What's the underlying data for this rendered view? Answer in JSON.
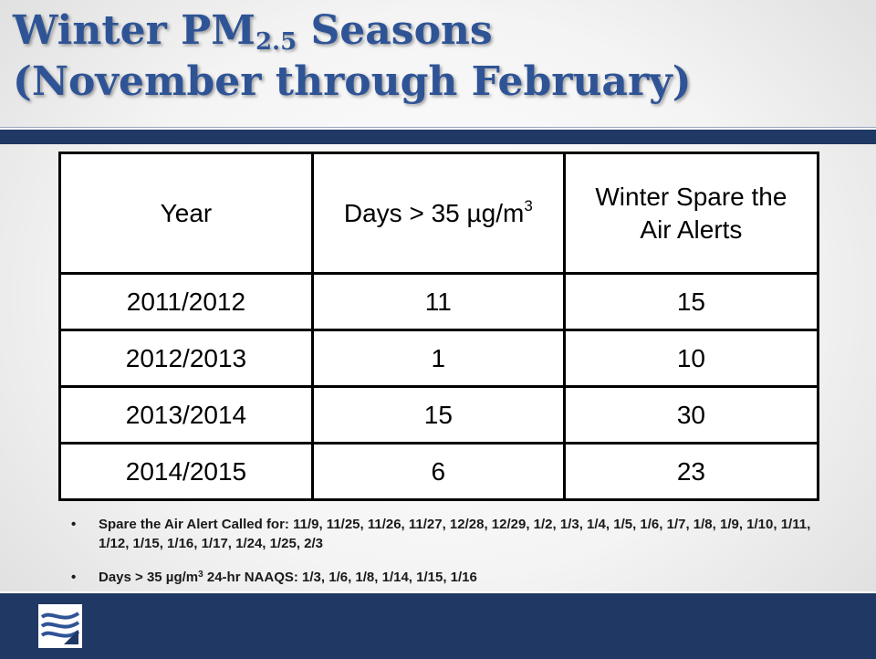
{
  "slide": {
    "title_line1_prefix": "Winter PM",
    "title_line1_subscript": "2.5",
    "title_line1_suffix": " Seasons",
    "title_line2": "(November through February)"
  },
  "table": {
    "headers": {
      "year": "Year",
      "days_prefix": "Days > 35 µg/m",
      "days_superscript": "3",
      "alerts": "Winter Spare the Air Alerts"
    },
    "rows": [
      {
        "year": "2011/2012",
        "days": "11",
        "alerts": "15"
      },
      {
        "year": "2012/2013",
        "days": "1",
        "alerts": "10"
      },
      {
        "year": "2013/2014",
        "days": "15",
        "alerts": "30"
      },
      {
        "year": "2014/2015",
        "days": "6",
        "alerts": "23"
      }
    ]
  },
  "notes": {
    "bullet": "•",
    "alert_days": "Spare the Air Alert Called for:  11/9, 11/25, 11/26, 11/27, 12/28, 12/29, 1/2, 1/3, 1/4, 1/5, 1/6, 1/7, 1/8, 1/9, 1/10, 1/11, 1/12, 1/15, 1/16, 1/17, 1/24, 1/25, 2/3",
    "exceed_prefix": "Days > 35 µg/m",
    "exceed_superscript": "3",
    "exceed_suffix": " 24-hr NAAQS:  1/3, 1/6, 1/8, 1/14, 1/15, 1/16"
  },
  "logo": {
    "icon": "waves-logo-icon"
  },
  "colors": {
    "title": "#2f5496",
    "band": "#1f3864"
  }
}
